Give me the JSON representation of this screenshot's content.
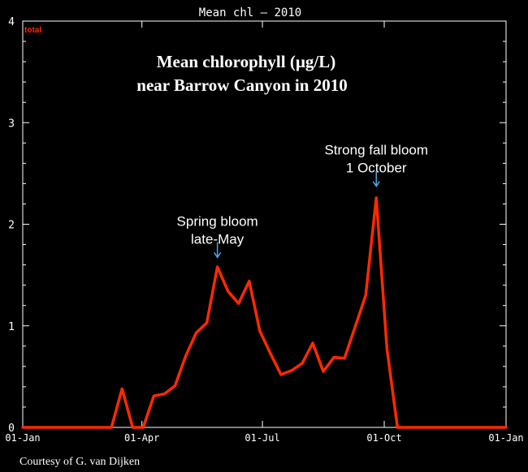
{
  "chart_data": {
    "type": "line",
    "title": "Mean chl – 2010",
    "legend_label": "total",
    "overlay_title_lines": [
      "Mean chlorophyll (µg/L)",
      "near Barrow Canyon in 2010"
    ],
    "ylim": [
      0,
      4
    ],
    "y_ticks": [
      "0",
      "1",
      "2",
      "3",
      "4"
    ],
    "x_ticks": [
      "01-Jan",
      "01-Apr",
      "01-Jul",
      "01-Oct",
      "01-Jan"
    ],
    "x_tick_dates": [
      "2010-01-01",
      "2010-04-01",
      "2010-07-01",
      "2010-10-01",
      "2011-01-01"
    ],
    "xlim": [
      "2010-01-01",
      "2011-01-01"
    ],
    "grid": false,
    "series": [
      {
        "name": "total",
        "color": "#ff2a00",
        "points": [
          {
            "x": "2010-01-01",
            "y": 0
          },
          {
            "x": "2010-03-09",
            "y": 0
          },
          {
            "x": "2010-03-17",
            "y": 0.38
          },
          {
            "x": "2010-03-25",
            "y": 0
          },
          {
            "x": "2010-04-02",
            "y": 0
          },
          {
            "x": "2010-04-10",
            "y": 0.31
          },
          {
            "x": "2010-04-18",
            "y": 0.33
          },
          {
            "x": "2010-04-26",
            "y": 0.41
          },
          {
            "x": "2010-05-04",
            "y": 0.7
          },
          {
            "x": "2010-05-12",
            "y": 0.93
          },
          {
            "x": "2010-05-20",
            "y": 1.03
          },
          {
            "x": "2010-05-28",
            "y": 1.58
          },
          {
            "x": "2010-06-05",
            "y": 1.34
          },
          {
            "x": "2010-06-13",
            "y": 1.22
          },
          {
            "x": "2010-06-21",
            "y": 1.44
          },
          {
            "x": "2010-06-29",
            "y": 0.95
          },
          {
            "x": "2010-07-07",
            "y": 0.73
          },
          {
            "x": "2010-07-15",
            "y": 0.52
          },
          {
            "x": "2010-07-23",
            "y": 0.56
          },
          {
            "x": "2010-07-31",
            "y": 0.63
          },
          {
            "x": "2010-08-08",
            "y": 0.83
          },
          {
            "x": "2010-08-16",
            "y": 0.55
          },
          {
            "x": "2010-08-24",
            "y": 0.69
          },
          {
            "x": "2010-09-01",
            "y": 0.68
          },
          {
            "x": "2010-09-09",
            "y": 0.99
          },
          {
            "x": "2010-09-17",
            "y": 1.3
          },
          {
            "x": "2010-09-25",
            "y": 2.26
          },
          {
            "x": "2010-10-03",
            "y": 0.78
          },
          {
            "x": "2010-10-11",
            "y": 0
          },
          {
            "x": "2011-01-01",
            "y": 0
          }
        ]
      }
    ],
    "annotations": [
      {
        "lines": [
          "Spring bloom",
          "late-May"
        ],
        "arrow_to": {
          "x": "2010-05-28",
          "y": 1.65
        }
      },
      {
        "lines": [
          "Strong fall bloom",
          "1 October"
        ],
        "arrow_to": {
          "x": "2010-09-25",
          "y": 2.35
        }
      }
    ]
  },
  "footer": {
    "credit": "Courtesy of  G. van Dijken"
  },
  "colors": {
    "background": "#000000",
    "axis": "#ffffff",
    "line": "#ff2a00",
    "annotation_text": "#ffffff",
    "arrow": "#4aa6e0"
  }
}
